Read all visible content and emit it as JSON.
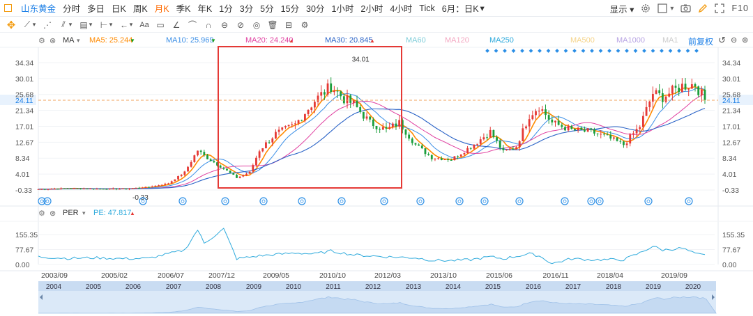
{
  "toolbar": {
    "stock_name": "山东黄金",
    "periods": [
      "分时",
      "多日",
      "日K",
      "周K",
      "月K",
      "季K",
      "年K",
      "1分",
      "3分",
      "5分",
      "15分",
      "30分",
      "1小时",
      "2小时",
      "4小时",
      "Tick",
      "6月：日K"
    ],
    "active_period": "月K",
    "show_label": "显示",
    "f10_label": "F10"
  },
  "ma_bar": {
    "label": "MA",
    "ma5": "MA5: 25.244",
    "ma10": "MA10: 25.969",
    "ma20": "MA20: 24.240",
    "ma30": "MA30: 20.845",
    "ma60": "MA60",
    "ma120": "MA120",
    "ma250": "MA250",
    "ma500": "MA500",
    "ma1000": "MA1000",
    "ma1": "MA1",
    "adjust_label": "前复权",
    "colors": {
      "ma5": "#ff8a00",
      "ma10": "#3a8ee6",
      "ma20": "#e040a0",
      "ma30": "#2a63c7",
      "ma60": "#7ecdd9",
      "ma120": "#f3a7c1",
      "ma250": "#2eaadc",
      "ma500": "#f5d48a",
      "ma1000": "#b7a3e3",
      "ma1": "#cccccc",
      "adjust": "#1a7ee6"
    }
  },
  "price_axis": {
    "left_ticks": [
      "34.34",
      "30.01",
      "25.68",
      "21.34",
      "17.01",
      "12.67",
      "8.34",
      "4.01",
      "-0.33"
    ],
    "right_ticks": [
      "34.34",
      "30.01",
      "25.68",
      "21.34",
      "17.01",
      "12.67",
      "8.34",
      "4.01",
      "-0.33"
    ],
    "current_price": "24.11",
    "high_label": "34.01",
    "low_label": "-0.33"
  },
  "per_bar": {
    "label": "PER",
    "pe": "PE: 47.817"
  },
  "per_axis": {
    "left_ticks": [
      "155.35",
      "77.67",
      "0.00"
    ],
    "right_ticks": [
      "155.35",
      "77.67",
      "0.00"
    ]
  },
  "date_axis": [
    "2003/09",
    "2005/02",
    "2006/07",
    "2007/12",
    "2009/05",
    "2010/10",
    "2012/03",
    "2013/10",
    "2015/06",
    "2016/11",
    "2018/04",
    "2019/09"
  ],
  "navigator_years": [
    "2004",
    "2005",
    "2006",
    "2007",
    "2008",
    "2009",
    "2010",
    "2011",
    "2012",
    "2013",
    "2014",
    "2015",
    "2016",
    "2017",
    "2018",
    "2019",
    "2020"
  ],
  "chart_data": {
    "type": "candlestick",
    "title": "山东黄金 月K",
    "x_range": [
      "2003/09",
      "2020"
    ],
    "ylim": [
      -0.33,
      34.34
    ],
    "yticks": [
      34.34,
      30.01,
      25.68,
      21.34,
      17.01,
      12.67,
      8.34,
      4.01,
      -0.33
    ],
    "annotations": {
      "high": 34.01,
      "low": -0.33,
      "current": 24.11
    },
    "close_series": [
      [
        "2003/09",
        -0.1
      ],
      [
        "2004/06",
        0.1
      ],
      [
        "2005/02",
        0.0
      ],
      [
        "2005/12",
        0.0
      ],
      [
        "2006/07",
        0.5
      ],
      [
        "2007/01",
        1.5
      ],
      [
        "2007/06",
        4.5
      ],
      [
        "2007/10",
        10.5
      ],
      [
        "2007/12",
        9.0
      ],
      [
        "2008/06",
        5.5
      ],
      [
        "2008/10",
        3.0
      ],
      [
        "2009/02",
        4.5
      ],
      [
        "2009/05",
        10.5
      ],
      [
        "2009/10",
        15.0
      ],
      [
        "2010/04",
        17.5
      ],
      [
        "2010/10",
        24.0
      ],
      [
        "2011/03",
        28.0
      ],
      [
        "2011/07",
        24.5
      ],
      [
        "2011/10",
        23.0
      ],
      [
        "2012/03",
        18.0
      ],
      [
        "2012/08",
        16.0
      ],
      [
        "2012/12",
        18.0
      ],
      [
        "2013/05",
        12.0
      ],
      [
        "2013/10",
        8.5
      ],
      [
        "2014/04",
        8.0
      ],
      [
        "2014/10",
        11.5
      ],
      [
        "2015/04",
        15.5
      ],
      [
        "2015/08",
        10.0
      ],
      [
        "2015/12",
        11.5
      ],
      [
        "2016/04",
        20.0
      ],
      [
        "2016/07",
        22.5
      ],
      [
        "2016/11",
        18.0
      ],
      [
        "2017/05",
        16.0
      ],
      [
        "2017/11",
        15.5
      ],
      [
        "2018/04",
        14.0
      ],
      [
        "2018/09",
        12.0
      ],
      [
        "2019/02",
        17.0
      ],
      [
        "2019/06",
        26.0
      ],
      [
        "2019/09",
        25.0
      ],
      [
        "2020/03",
        28.0
      ],
      [
        "2020/07",
        28.5
      ],
      [
        "2020/10",
        24.11
      ]
    ],
    "per_series": {
      "name": "PER",
      "yticks": [
        155.35,
        77.67,
        0.0
      ],
      "values": [
        [
          "2003/09",
          40
        ],
        [
          "2004/06",
          32
        ],
        [
          "2005/02",
          35
        ],
        [
          "2005/12",
          30
        ],
        [
          "2006/07",
          32
        ],
        [
          "2007/06",
          75
        ],
        [
          "2007/10",
          180
        ],
        [
          "2007/12",
          110
        ],
        [
          "2008/06",
          185
        ],
        [
          "2008/10",
          30
        ],
        [
          "2009/05",
          45
        ],
        [
          "2010/04",
          60
        ],
        [
          "2010/10",
          55
        ],
        [
          "2011/03",
          70
        ],
        [
          "2011/10",
          50
        ],
        [
          "2012/03",
          45
        ],
        [
          "2012/08",
          40
        ],
        [
          "2013/05",
          35
        ],
        [
          "2013/10",
          22
        ],
        [
          "2014/04",
          20
        ],
        [
          "2014/10",
          25
        ],
        [
          "2015/04",
          40
        ],
        [
          "2015/08",
          30
        ],
        [
          "2016/04",
          55
        ],
        [
          "2016/07",
          45
        ],
        [
          "2016/11",
          5
        ],
        [
          "2017/05",
          30
        ],
        [
          "2017/11",
          25
        ],
        [
          "2018/04",
          25
        ],
        [
          "2018/09",
          25
        ],
        [
          "2019/02",
          60
        ],
        [
          "2019/06",
          95
        ],
        [
          "2019/09",
          75
        ],
        [
          "2020/03",
          85
        ],
        [
          "2020/07",
          55
        ],
        [
          "2020/10",
          48
        ]
      ]
    }
  }
}
